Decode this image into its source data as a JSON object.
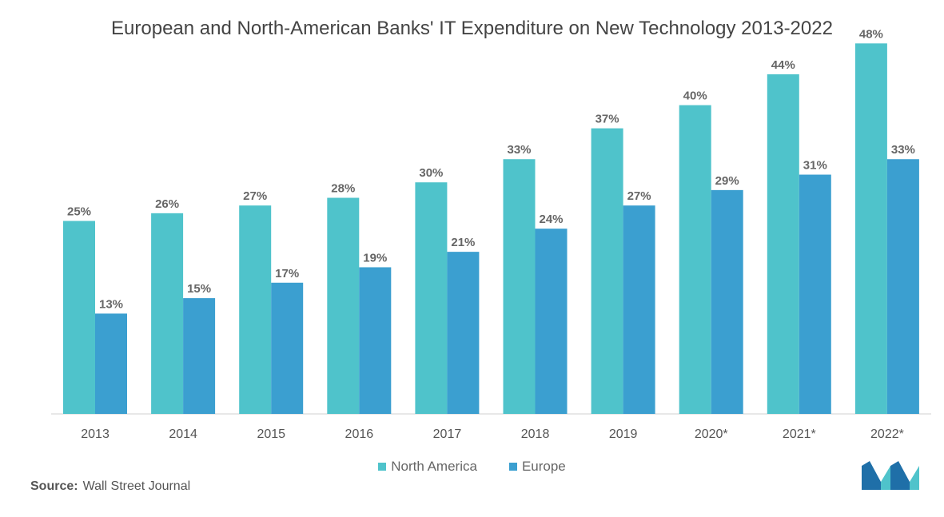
{
  "chart_data": {
    "type": "bar",
    "title": "European and North-American Banks' IT Expenditure on New Technology 2013-2022",
    "categories": [
      "2013",
      "2014",
      "2015",
      "2016",
      "2017",
      "2018",
      "2019",
      "2020*",
      "2021*",
      "2022*"
    ],
    "series": [
      {
        "name": "North America",
        "color": "#4fc3cb",
        "values": [
          25,
          26,
          27,
          28,
          30,
          33,
          37,
          40,
          44,
          48
        ],
        "labels": [
          "25%",
          "26%",
          "27%",
          "28%",
          "30%",
          "33%",
          "37%",
          "40%",
          "44%",
          "48%"
        ]
      },
      {
        "name": "Europe",
        "color": "#3b9fd0",
        "values": [
          13,
          15,
          17,
          19,
          21,
          24,
          27,
          29,
          31,
          33
        ],
        "labels": [
          "13%",
          "15%",
          "17%",
          "19%",
          "21%",
          "24%",
          "27%",
          "29%",
          "31%",
          "33%"
        ]
      }
    ],
    "ylim": [
      0,
      50
    ],
    "grid": false,
    "legend_position": "bottom"
  },
  "source": {
    "label": "Source:",
    "text": "Wall Street Journal"
  },
  "logo": {
    "icon": "mordor-logo-icon",
    "colors": [
      "#1f6fa8",
      "#4fc3cb"
    ]
  }
}
